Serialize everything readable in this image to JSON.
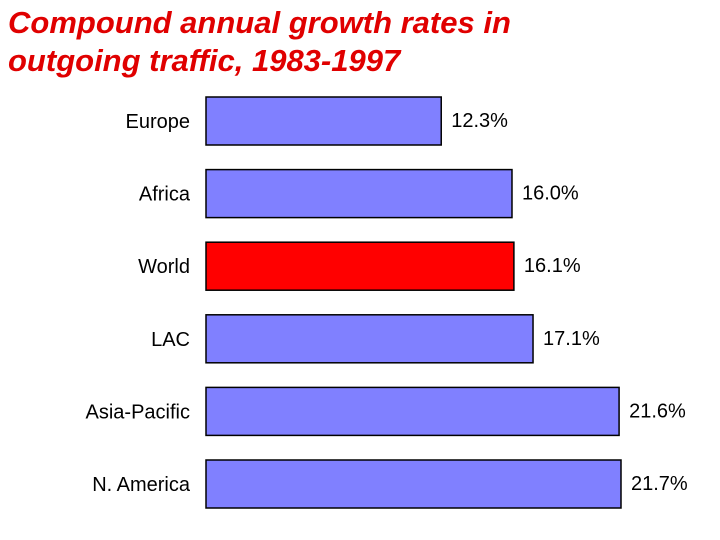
{
  "chart_data": {
    "type": "bar",
    "orientation": "horizontal",
    "title_lines": [
      "Compound annual growth rates in",
      "outgoing traffic, 1983-1997"
    ],
    "categories": [
      "Europe",
      "Africa",
      "World",
      "LAC",
      "Asia-Pacific",
      "N. America"
    ],
    "values": [
      12.3,
      16.0,
      16.1,
      17.1,
      21.6,
      21.7
    ],
    "value_labels": [
      "12.3%",
      "16.0%",
      "16.1%",
      "17.1%",
      "21.6%",
      "21.7%"
    ],
    "highlight_category": "World",
    "xlim": [
      0,
      21.7
    ],
    "xlabel": "",
    "ylabel": "",
    "grid": false,
    "legend": "none",
    "colors": {
      "title": "#e00000",
      "bar": "#8080ff",
      "highlight": "#ff0000",
      "outline": "#000000"
    }
  }
}
